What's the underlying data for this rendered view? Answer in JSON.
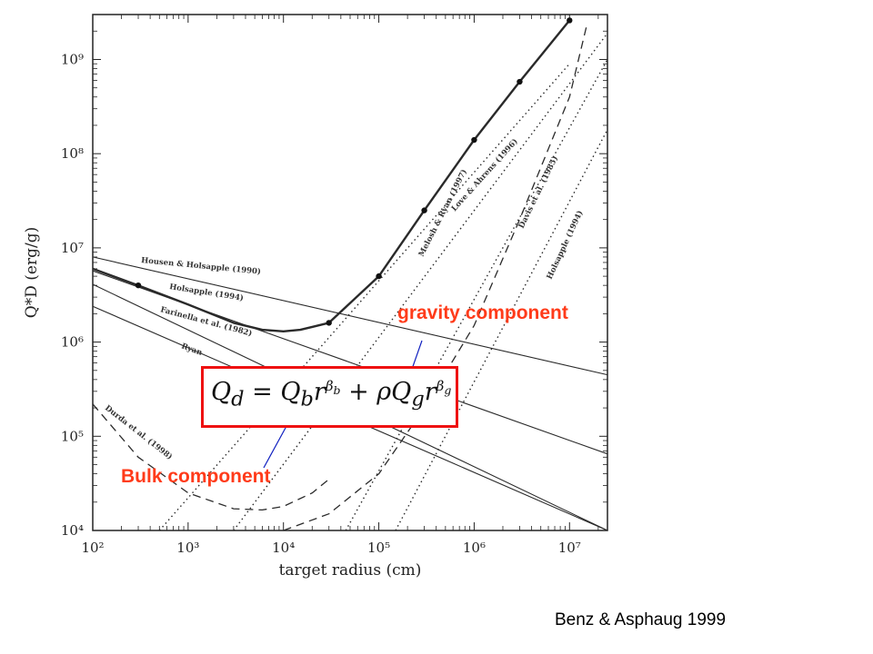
{
  "chart_data": {
    "type": "line",
    "xlabel": "target radius (cm)",
    "ylabel": "Q*D (erg/g)",
    "xscale": "log",
    "yscale": "log",
    "xlim": [
      100,
      25000000
    ],
    "ylim": [
      10000,
      3000000000
    ],
    "x_ticks": [
      {
        "value": 100,
        "label": "10²"
      },
      {
        "value": 1000,
        "label": "10³"
      },
      {
        "value": 10000,
        "label": "10⁴"
      },
      {
        "value": 100000,
        "label": "10⁵"
      },
      {
        "value": 1000000,
        "label": "10⁶"
      },
      {
        "value": 10000000,
        "label": "10⁷"
      }
    ],
    "y_ticks": [
      {
        "value": 10000,
        "label": "10⁴"
      },
      {
        "value": 100000,
        "label": "10⁵"
      },
      {
        "value": 1000000,
        "label": "10⁶"
      },
      {
        "value": 10000000,
        "label": "10⁷"
      },
      {
        "value": 100000000,
        "label": "10⁸"
      },
      {
        "value": 1000000000,
        "label": "10⁹"
      }
    ],
    "grid": false,
    "series": [
      {
        "name": "Housen & Holsapple (1990)",
        "style": "solid",
        "x": [
          100,
          25000000
        ],
        "y": [
          8000000,
          450000
        ]
      },
      {
        "name": "Holsapple (1994)",
        "style": "solid",
        "x": [
          100,
          25000000
        ],
        "y": [
          5700000,
          65000
        ]
      },
      {
        "name": "Farinella et al. (1982)",
        "style": "solid",
        "x": [
          100,
          25000000
        ],
        "y": [
          4100000,
          8000
        ]
      },
      {
        "name": "Ryan",
        "style": "solid",
        "x": [
          100,
          25000000
        ],
        "y": [
          2400000,
          1500
        ]
      },
      {
        "name": "Durda et al. (1998)",
        "style": "dashed",
        "x": [
          100,
          300,
          1000,
          3000,
          6000,
          10000,
          20000,
          30000
        ],
        "y": [
          220000,
          60000,
          25000,
          17000,
          16500,
          18000,
          25000,
          35000
        ]
      },
      {
        "name": "",
        "style": "solid-bold",
        "x": [
          100,
          300,
          1000,
          3000,
          6000,
          10000,
          15000,
          20000,
          30000,
          100000,
          300000,
          1000000,
          3000000,
          10000000
        ],
        "y": [
          6000000,
          4000000,
          2500000,
          1600000,
          1350000,
          1300000,
          1350000,
          1450000,
          1600000,
          5000000,
          25000000,
          140000000,
          580000000,
          2600000000
        ]
      },
      {
        "name": "",
        "style": "dotted",
        "x": [
          500,
          10000000
        ],
        "y": [
          10000,
          900000000
        ]
      },
      {
        "name": "Love & Ahrens (1996)",
        "style": "dotted",
        "x": [
          3000,
          25000000
        ],
        "y": [
          10000,
          1900000000
        ]
      },
      {
        "name": "Melosh & Ryan (1997)",
        "style": "dashed",
        "x": [
          10000,
          30000,
          100000,
          300000,
          1000000,
          3000000,
          10000000,
          15000000
        ],
        "y": [
          10000,
          15000,
          40000,
          200000,
          1500000,
          20000000,
          400000000,
          2200000000
        ]
      },
      {
        "name": "Davis et al. (1985)",
        "style": "dotted",
        "x": [
          45000,
          25000000
        ],
        "y": [
          10000,
          1000000000
        ]
      },
      {
        "name": "Holsapple (1994)",
        "style": "dotted",
        "x": [
          150000,
          25000000
        ],
        "y": [
          10000,
          180000000
        ]
      }
    ],
    "points": {
      "x": [
        300,
        30000,
        100000,
        300000,
        1000000,
        3000000,
        10000000
      ],
      "y": [
        4000000,
        1600000,
        5000000,
        25000000,
        140000000,
        580000000,
        2600000000
      ]
    }
  },
  "annotations": {
    "gravity_label": "gravity component",
    "bulk_label": "Bulk component",
    "formula": {
      "qd": "Q",
      "qd_sub": "d",
      "eq": " = ",
      "qb": "Q",
      "qb_sub": "b",
      "r1": "r",
      "beta_b": "β",
      "beta_b_sub": "b",
      "plus": " + ",
      "rho": "ρ",
      "qg": "Q",
      "qg_sub": "g",
      "r2": "r",
      "beta_g": "β",
      "beta_g_sub": "g"
    },
    "citation": "Benz & Asphaug 1999"
  }
}
